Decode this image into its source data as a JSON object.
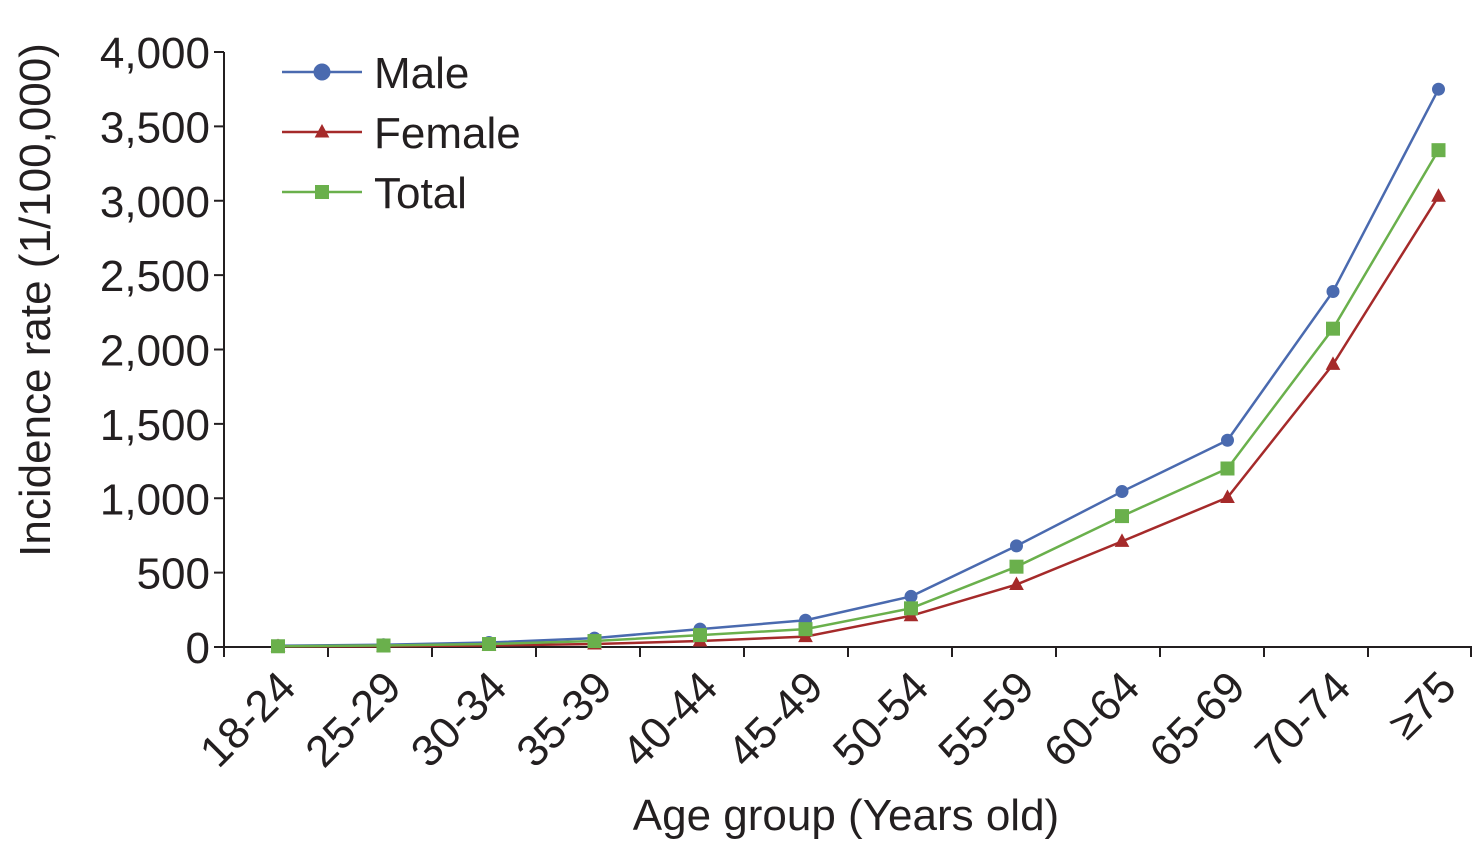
{
  "chart_data": {
    "type": "line",
    "xlabel": "Age group (Years old)",
    "ylabel": "Incidence rate (1/100,000)",
    "categories": [
      "18-24",
      "25-29",
      "30-34",
      "35-39",
      "40-44",
      "45-49",
      "50-54",
      "55-59",
      "60-64",
      "65-69",
      "70-74",
      "≥75"
    ],
    "ylim": [
      0,
      4000
    ],
    "yticks": [
      0,
      500,
      1000,
      1500,
      2000,
      2500,
      3000,
      3500,
      4000
    ],
    "ytick_labels": [
      "0",
      "500",
      "1,000",
      "1,500",
      "2,000",
      "2,500",
      "3,000",
      "3,500",
      "4,000"
    ],
    "grid": false,
    "legend_position": "top-left",
    "series": [
      {
        "name": "Male",
        "color": "#4a6aaf",
        "marker": "circle",
        "values": [
          8,
          15,
          30,
          60,
          120,
          180,
          340,
          680,
          1045,
          1390,
          2390,
          3750
        ]
      },
      {
        "name": "Female",
        "color": "#a52a2a",
        "marker": "triangle",
        "values": [
          3,
          5,
          10,
          20,
          40,
          70,
          210,
          420,
          710,
          1005,
          1900,
          3030
        ]
      },
      {
        "name": "Total",
        "color": "#6ab04c",
        "marker": "square",
        "values": [
          5,
          10,
          20,
          40,
          80,
          120,
          260,
          540,
          880,
          1200,
          2140,
          3340
        ]
      }
    ]
  }
}
